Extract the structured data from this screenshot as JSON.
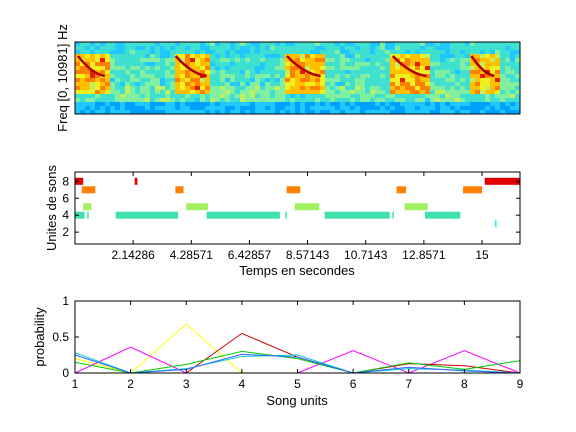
{
  "spectrogram": {
    "ylabel": "Freq [0, 10981] Hz",
    "colors": [
      "#00008f",
      "#0050ff",
      "#00a0ff",
      "#20c8ff",
      "#40e0d0",
      "#80f0a0",
      "#c0f060",
      "#f0f020",
      "#ffc000",
      "#ff8000",
      "#e02000",
      "#a00000"
    ],
    "syllable_clusters_seconds": [
      [
        0.0,
        1.25
      ],
      [
        3.6,
        5.0
      ],
      [
        7.7,
        9.2
      ],
      [
        11.6,
        13.1
      ],
      [
        14.5,
        15.6
      ]
    ]
  },
  "chart_data": [
    {
      "type": "scatter",
      "ylabel": "Unites de sons",
      "xlabel": "Temps en secondes",
      "xlim": [
        0,
        16.4
      ],
      "ylim": [
        9.1,
        0.6
      ],
      "x_ticks": [
        "2.14286",
        "4.28571",
        "6.42857",
        "8.57143",
        "10.7143",
        "12.8571",
        "15"
      ],
      "x_tick_values": [
        2.14286,
        4.28571,
        6.42857,
        8.57143,
        10.7143,
        12.8571,
        15
      ],
      "y_ticks": [
        "2",
        "4",
        "6",
        "8"
      ],
      "y_tick_values": [
        2,
        4,
        6,
        8
      ],
      "unit_colors": {
        "3": "#00ffff",
        "4": "#40e0b0",
        "5": "#a0f060",
        "7": "#ff8000",
        "8": "#e00000"
      },
      "segments": [
        {
          "unit": 4,
          "start": 0.0,
          "end": 0.35
        },
        {
          "unit": 4,
          "start": 0.45,
          "end": 0.5
        },
        {
          "unit": 4,
          "start": 1.5,
          "end": 3.8
        },
        {
          "unit": 4,
          "start": 4.85,
          "end": 7.55
        },
        {
          "unit": 4,
          "start": 7.75,
          "end": 7.8
        },
        {
          "unit": 4,
          "start": 9.2,
          "end": 11.6
        },
        {
          "unit": 4,
          "start": 11.7,
          "end": 11.75
        },
        {
          "unit": 4,
          "start": 12.9,
          "end": 14.2
        },
        {
          "unit": 5,
          "start": 0.3,
          "end": 0.6
        },
        {
          "unit": 5,
          "start": 4.1,
          "end": 4.9
        },
        {
          "unit": 5,
          "start": 8.1,
          "end": 9.0
        },
        {
          "unit": 5,
          "start": 12.15,
          "end": 13.0
        },
        {
          "unit": 7,
          "start": 0.25,
          "end": 0.75
        },
        {
          "unit": 7,
          "start": 3.7,
          "end": 4.0
        },
        {
          "unit": 7,
          "start": 7.8,
          "end": 8.3
        },
        {
          "unit": 7,
          "start": 11.85,
          "end": 12.2
        },
        {
          "unit": 7,
          "start": 14.3,
          "end": 15.0
        },
        {
          "unit": 8,
          "start": 0.0,
          "end": 0.3
        },
        {
          "unit": 8,
          "start": 2.2,
          "end": 2.3
        },
        {
          "unit": 8,
          "start": 15.1,
          "end": 16.4
        },
        {
          "unit": 3,
          "start": 15.48,
          "end": 15.52
        }
      ]
    },
    {
      "type": "line",
      "ylabel": "probability",
      "xlabel": "Song units",
      "x": [
        1,
        2,
        3,
        4,
        5,
        6,
        7,
        8,
        9
      ],
      "xlim": [
        1,
        9
      ],
      "ylim": [
        0,
        1
      ],
      "y_ticks": [
        "0",
        "0.5",
        "1"
      ],
      "y_tick_values": [
        0,
        0.5,
        1
      ],
      "series": [
        {
          "color": "#ffff00",
          "values": [
            0.2,
            0.0,
            0.68,
            0.0,
            0.0,
            0.0,
            0.0,
            0.0,
            0.0
          ]
        },
        {
          "color": "#ff00ff",
          "values": [
            0.0,
            0.36,
            0.0,
            0.0,
            0.0,
            0.31,
            0.0,
            0.31,
            0.0
          ]
        },
        {
          "color": "#cc0000",
          "values": [
            0.0,
            0.0,
            0.0,
            0.55,
            0.22,
            0.0,
            0.13,
            0.1,
            0.0
          ]
        },
        {
          "color": "#00cc00",
          "values": [
            0.15,
            0.0,
            0.12,
            0.3,
            0.2,
            0.0,
            0.14,
            0.05,
            0.17
          ]
        },
        {
          "color": "#00cccc",
          "values": [
            0.28,
            0.0,
            0.06,
            0.23,
            0.25,
            0.0,
            0.06,
            0.04,
            0.0
          ]
        },
        {
          "color": "#3366ff",
          "values": [
            0.25,
            0.0,
            0.05,
            0.26,
            0.22,
            0.0,
            0.08,
            0.03,
            0.0
          ]
        }
      ]
    }
  ]
}
